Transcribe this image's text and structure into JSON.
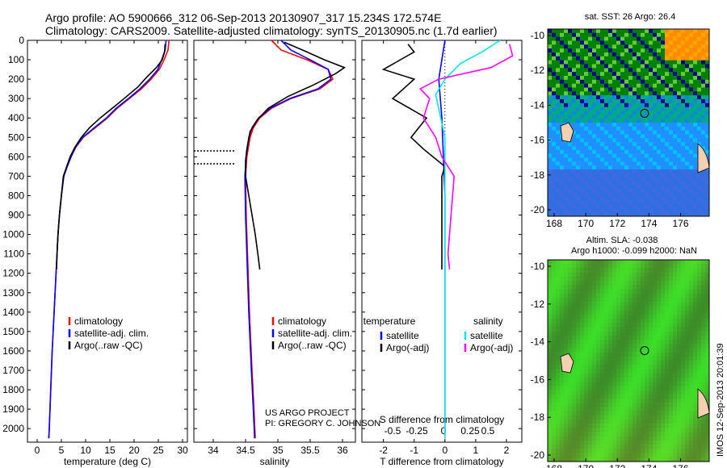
{
  "header": {
    "title_line1": "Argo profile: AO 5900666_312 06-Sep-2013 20130907_317 15.234S 172.574E",
    "title_line2": "Climatology: CARS2009. Satellite-adjusted climatology: synTS_20130905.nc (1.7d earlier)"
  },
  "maps": {
    "sst_title": "sat. SST: 26 Argo: 26.4",
    "sla_title_line1": "Altim. SLA: -0.038",
    "sla_title_line2": "Argo h1000: -0.099 h2000: NaN",
    "x_ticks": [
      "168",
      "170",
      "172",
      "174",
      "176"
    ],
    "y_ticks": [
      "-10",
      "-12",
      "-14",
      "-16",
      "-18",
      "-20"
    ],
    "argo_position": {
      "lon": 172.574,
      "lat": -15.234
    }
  },
  "stamp": "IMOS 12-Sep-2013 20:01:39",
  "credit": {
    "line1": "US ARGO PROJECT",
    "line2": "PI: GREGORY C. JOHNSON"
  },
  "colors": {
    "climatology": "#ff0000",
    "satellite": "#0000ff",
    "argo": "#000000",
    "salinity_sat": "#00e5e5",
    "salinity_argo": "#ff00ff"
  },
  "chart_data": [
    {
      "type": "line",
      "xlabel": "temperature (deg C)",
      "ylabel": "",
      "xlim": [
        -2,
        31
      ],
      "ylim": [
        2070,
        0
      ],
      "x_ticks": [
        "0",
        "5",
        "10",
        "15",
        "20",
        "25",
        "30"
      ],
      "y_ticks": [
        "0",
        "100",
        "200",
        "300",
        "400",
        "500",
        "600",
        "700",
        "800",
        "900",
        "1000",
        "1100",
        "1200",
        "1300",
        "1400",
        "1500",
        "1600",
        "1700",
        "1800",
        "1900",
        "2000"
      ],
      "legend": [
        "climatology",
        "satellite-adj. clim.",
        "Argo(..raw -QC)"
      ],
      "series": [
        {
          "name": "climatology",
          "values": [
            [
              27.2,
              0
            ],
            [
              27.0,
              50
            ],
            [
              26.2,
              100
            ],
            [
              25.2,
              150
            ],
            [
              23.5,
              200
            ],
            [
              21.5,
              250
            ],
            [
              19.0,
              300
            ],
            [
              16.5,
              350
            ],
            [
              14.5,
              400
            ],
            [
              12.0,
              450
            ],
            [
              9.5,
              500
            ],
            [
              8.0,
              550
            ],
            [
              7.0,
              600
            ],
            [
              6.2,
              650
            ],
            [
              5.5,
              700
            ],
            [
              5.0,
              800
            ],
            [
              4.6,
              900
            ],
            [
              4.3,
              1000
            ],
            [
              3.9,
              1200
            ],
            [
              3.5,
              1400
            ],
            [
              3.1,
              1600
            ],
            [
              2.8,
              1800
            ],
            [
              2.5,
              2000
            ],
            [
              2.4,
              2050
            ]
          ]
        },
        {
          "name": "satellite-adj. clim.",
          "values": [
            [
              26.6,
              0
            ],
            [
              26.4,
              50
            ],
            [
              25.7,
              100
            ],
            [
              24.9,
              150
            ],
            [
              23.2,
              200
            ],
            [
              21.2,
              250
            ],
            [
              18.8,
              300
            ],
            [
              16.3,
              350
            ],
            [
              14.3,
              400
            ],
            [
              11.8,
              450
            ],
            [
              9.4,
              500
            ],
            [
              7.9,
              550
            ],
            [
              7.0,
              600
            ],
            [
              6.2,
              650
            ],
            [
              5.5,
              700
            ],
            [
              5.0,
              800
            ],
            [
              4.6,
              900
            ],
            [
              4.3,
              1000
            ],
            [
              3.9,
              1200
            ],
            [
              3.5,
              1400
            ],
            [
              3.1,
              1600
            ],
            [
              2.8,
              1800
            ],
            [
              2.5,
              2000
            ],
            [
              2.4,
              2050
            ]
          ]
        },
        {
          "name": "Argo(..raw -QC)",
          "values": [
            [
              26.4,
              20
            ],
            [
              26.3,
              60
            ],
            [
              25.8,
              100
            ],
            [
              24.6,
              140
            ],
            [
              22.6,
              190
            ],
            [
              20.8,
              240
            ],
            [
              18.4,
              290
            ],
            [
              16.0,
              340
            ],
            [
              13.0,
              400
            ],
            [
              10.8,
              450
            ],
            [
              9.1,
              500
            ],
            [
              7.8,
              550
            ],
            [
              6.8,
              600
            ],
            [
              6.1,
              650
            ],
            [
              5.4,
              700
            ],
            [
              5.0,
              800
            ],
            [
              4.6,
              900
            ],
            [
              4.3,
              1000
            ],
            [
              4.1,
              1100
            ],
            [
              4.0,
              1180
            ]
          ]
        }
      ]
    },
    {
      "type": "line",
      "xlabel": "salinity",
      "xlim": [
        33.7,
        36.2
      ],
      "ylim": [
        2070,
        0
      ],
      "x_ticks": [
        "34",
        "34.5",
        "35",
        "35.5",
        "36"
      ],
      "legend": [
        "climatology",
        "satellite-adj. clim.",
        "Argo(..raw -QC)"
      ],
      "series": [
        {
          "name": "climatology",
          "values": [
            [
              34.9,
              0
            ],
            [
              35.05,
              50
            ],
            [
              35.45,
              100
            ],
            [
              35.78,
              150
            ],
            [
              35.85,
              200
            ],
            [
              35.65,
              250
            ],
            [
              35.2,
              300
            ],
            [
              34.9,
              350
            ],
            [
              34.72,
              400
            ],
            [
              34.62,
              450
            ],
            [
              34.57,
              500
            ],
            [
              34.52,
              600
            ],
            [
              34.5,
              700
            ],
            [
              34.51,
              900
            ],
            [
              34.53,
              1100
            ],
            [
              34.56,
              1400
            ],
            [
              34.6,
              1700
            ],
            [
              34.63,
              1900
            ],
            [
              34.65,
              2050
            ]
          ]
        },
        {
          "name": "satellite-adj. clim.",
          "values": [
            [
              35.05,
              0
            ],
            [
              35.2,
              50
            ],
            [
              35.5,
              100
            ],
            [
              35.78,
              150
            ],
            [
              35.82,
              200
            ],
            [
              35.62,
              250
            ],
            [
              35.18,
              300
            ],
            [
              34.88,
              350
            ],
            [
              34.7,
              400
            ],
            [
              34.6,
              450
            ],
            [
              34.55,
              500
            ],
            [
              34.51,
              600
            ],
            [
              34.49,
              700
            ],
            [
              34.5,
              900
            ],
            [
              34.52,
              1100
            ],
            [
              34.55,
              1400
            ],
            [
              34.59,
              1700
            ],
            [
              34.62,
              1900
            ],
            [
              34.64,
              2050
            ]
          ]
        },
        {
          "name": "Argo(..raw -QC)",
          "values": [
            [
              35.1,
              10
            ],
            [
              35.45,
              60
            ],
            [
              35.72,
              100
            ],
            [
              36.03,
              140
            ],
            [
              35.9,
              170
            ],
            [
              35.55,
              230
            ],
            [
              35.15,
              290
            ],
            [
              34.85,
              350
            ],
            [
              34.68,
              410
            ],
            [
              34.57,
              470
            ],
            [
              34.52,
              560
            ],
            [
              34.5,
              620
            ],
            [
              34.5,
              700
            ],
            [
              34.55,
              800
            ],
            [
              34.6,
              900
            ],
            [
              34.65,
              1000
            ],
            [
              34.69,
              1100
            ],
            [
              34.72,
              1180
            ]
          ]
        }
      ]
    },
    {
      "type": "line",
      "xlabel": "T difference from climatology",
      "xlabel2": "S difference from climatology",
      "xlim": [
        -2.7,
        2.5
      ],
      "ylim": [
        2070,
        0
      ],
      "x_ticks": [
        "-2",
        "-1",
        "0",
        "1",
        "2"
      ],
      "x_ticks_salinity": [
        "-0.5",
        "-0.25",
        "0",
        "0.25",
        "0.5"
      ],
      "legend": [
        "temperature",
        "satellite",
        "Argo(-adj)",
        "salinity",
        "satellite",
        "Argo(-adj)"
      ],
      "series": [
        {
          "name": "satellite",
          "values": [
            [
              0,
              0
            ],
            [
              -0.1,
              100
            ],
            [
              -0.2,
              200
            ],
            [
              -0.1,
              400
            ],
            [
              -0.05,
              600
            ],
            [
              0,
              800
            ],
            [
              0,
              1200
            ],
            [
              0,
              2050
            ]
          ]
        },
        {
          "name": "Argo(-adj)",
          "values": [
            [
              -1.2,
              20
            ],
            [
              -1.0,
              60
            ],
            [
              -2.0,
              150
            ],
            [
              -1.0,
              200
            ],
            [
              -1.7,
              300
            ],
            [
              -0.6,
              400
            ],
            [
              -1.1,
              500
            ],
            [
              -0.7,
              560
            ],
            [
              0.0,
              650
            ],
            [
              -0.1,
              700
            ],
            [
              -0.1,
              900
            ],
            [
              -0.1,
              1100
            ],
            [
              -0.1,
              1180
            ]
          ]
        },
        {
          "name": "satellite",
          "values": [
            [
              1.8,
              0
            ],
            [
              1.2,
              60
            ],
            [
              0.5,
              120
            ],
            [
              0.0,
              200
            ],
            [
              -0.3,
              280
            ],
            [
              0.0,
              500
            ],
            [
              0.0,
              600
            ],
            [
              0.0,
              800
            ],
            [
              0.0,
              2050
            ]
          ]
        },
        {
          "name": "Argo(-adj)",
          "values": [
            [
              2.1,
              20
            ],
            [
              2.2,
              80
            ],
            [
              1.5,
              140
            ],
            [
              -0.2,
              200
            ],
            [
              -0.8,
              250
            ],
            [
              -0.5,
              300
            ],
            [
              -0.7,
              400
            ],
            [
              -0.3,
              500
            ],
            [
              -0.1,
              600
            ],
            [
              0.3,
              700
            ],
            [
              0.2,
              900
            ],
            [
              0.1,
              1100
            ],
            [
              0.15,
              1180
            ]
          ]
        }
      ]
    }
  ]
}
